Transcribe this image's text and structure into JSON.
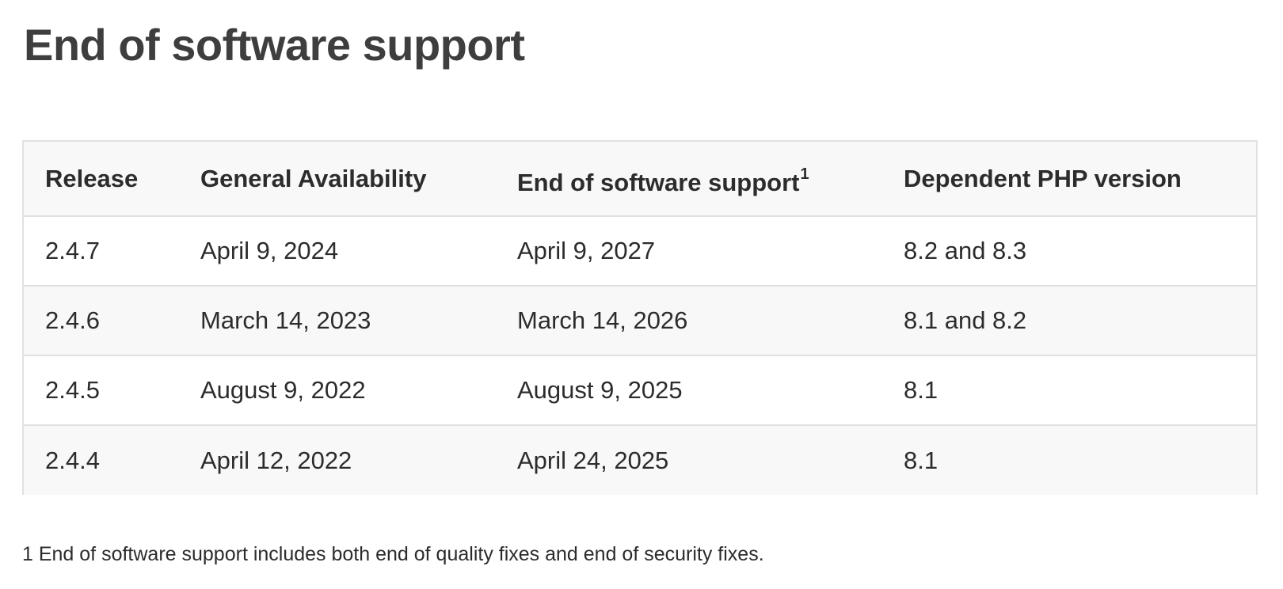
{
  "page": {
    "title": "End of software support"
  },
  "table": {
    "headers": {
      "release": "Release",
      "general_availability": "General Availability",
      "end_of_support": "End of software support",
      "end_of_support_footnote_mark": "1",
      "php_version": "Dependent PHP version"
    },
    "rows": [
      {
        "release": "2.4.7",
        "ga": "April 9, 2024",
        "eos": "April 9, 2027",
        "php": "8.2 and 8.3"
      },
      {
        "release": "2.4.6",
        "ga": "March 14, 2023",
        "eos": "March 14, 2026",
        "php": "8.1 and 8.2"
      },
      {
        "release": "2.4.5",
        "ga": "August 9, 2022",
        "eos": "August 9, 2025",
        "php": "8.1"
      },
      {
        "release": "2.4.4",
        "ga": "April 12, 2022",
        "eos": "April 24, 2025",
        "php": "8.1"
      }
    ]
  },
  "footnote": {
    "text": "1 End of software support includes both end of quality fixes and end of security fixes."
  }
}
